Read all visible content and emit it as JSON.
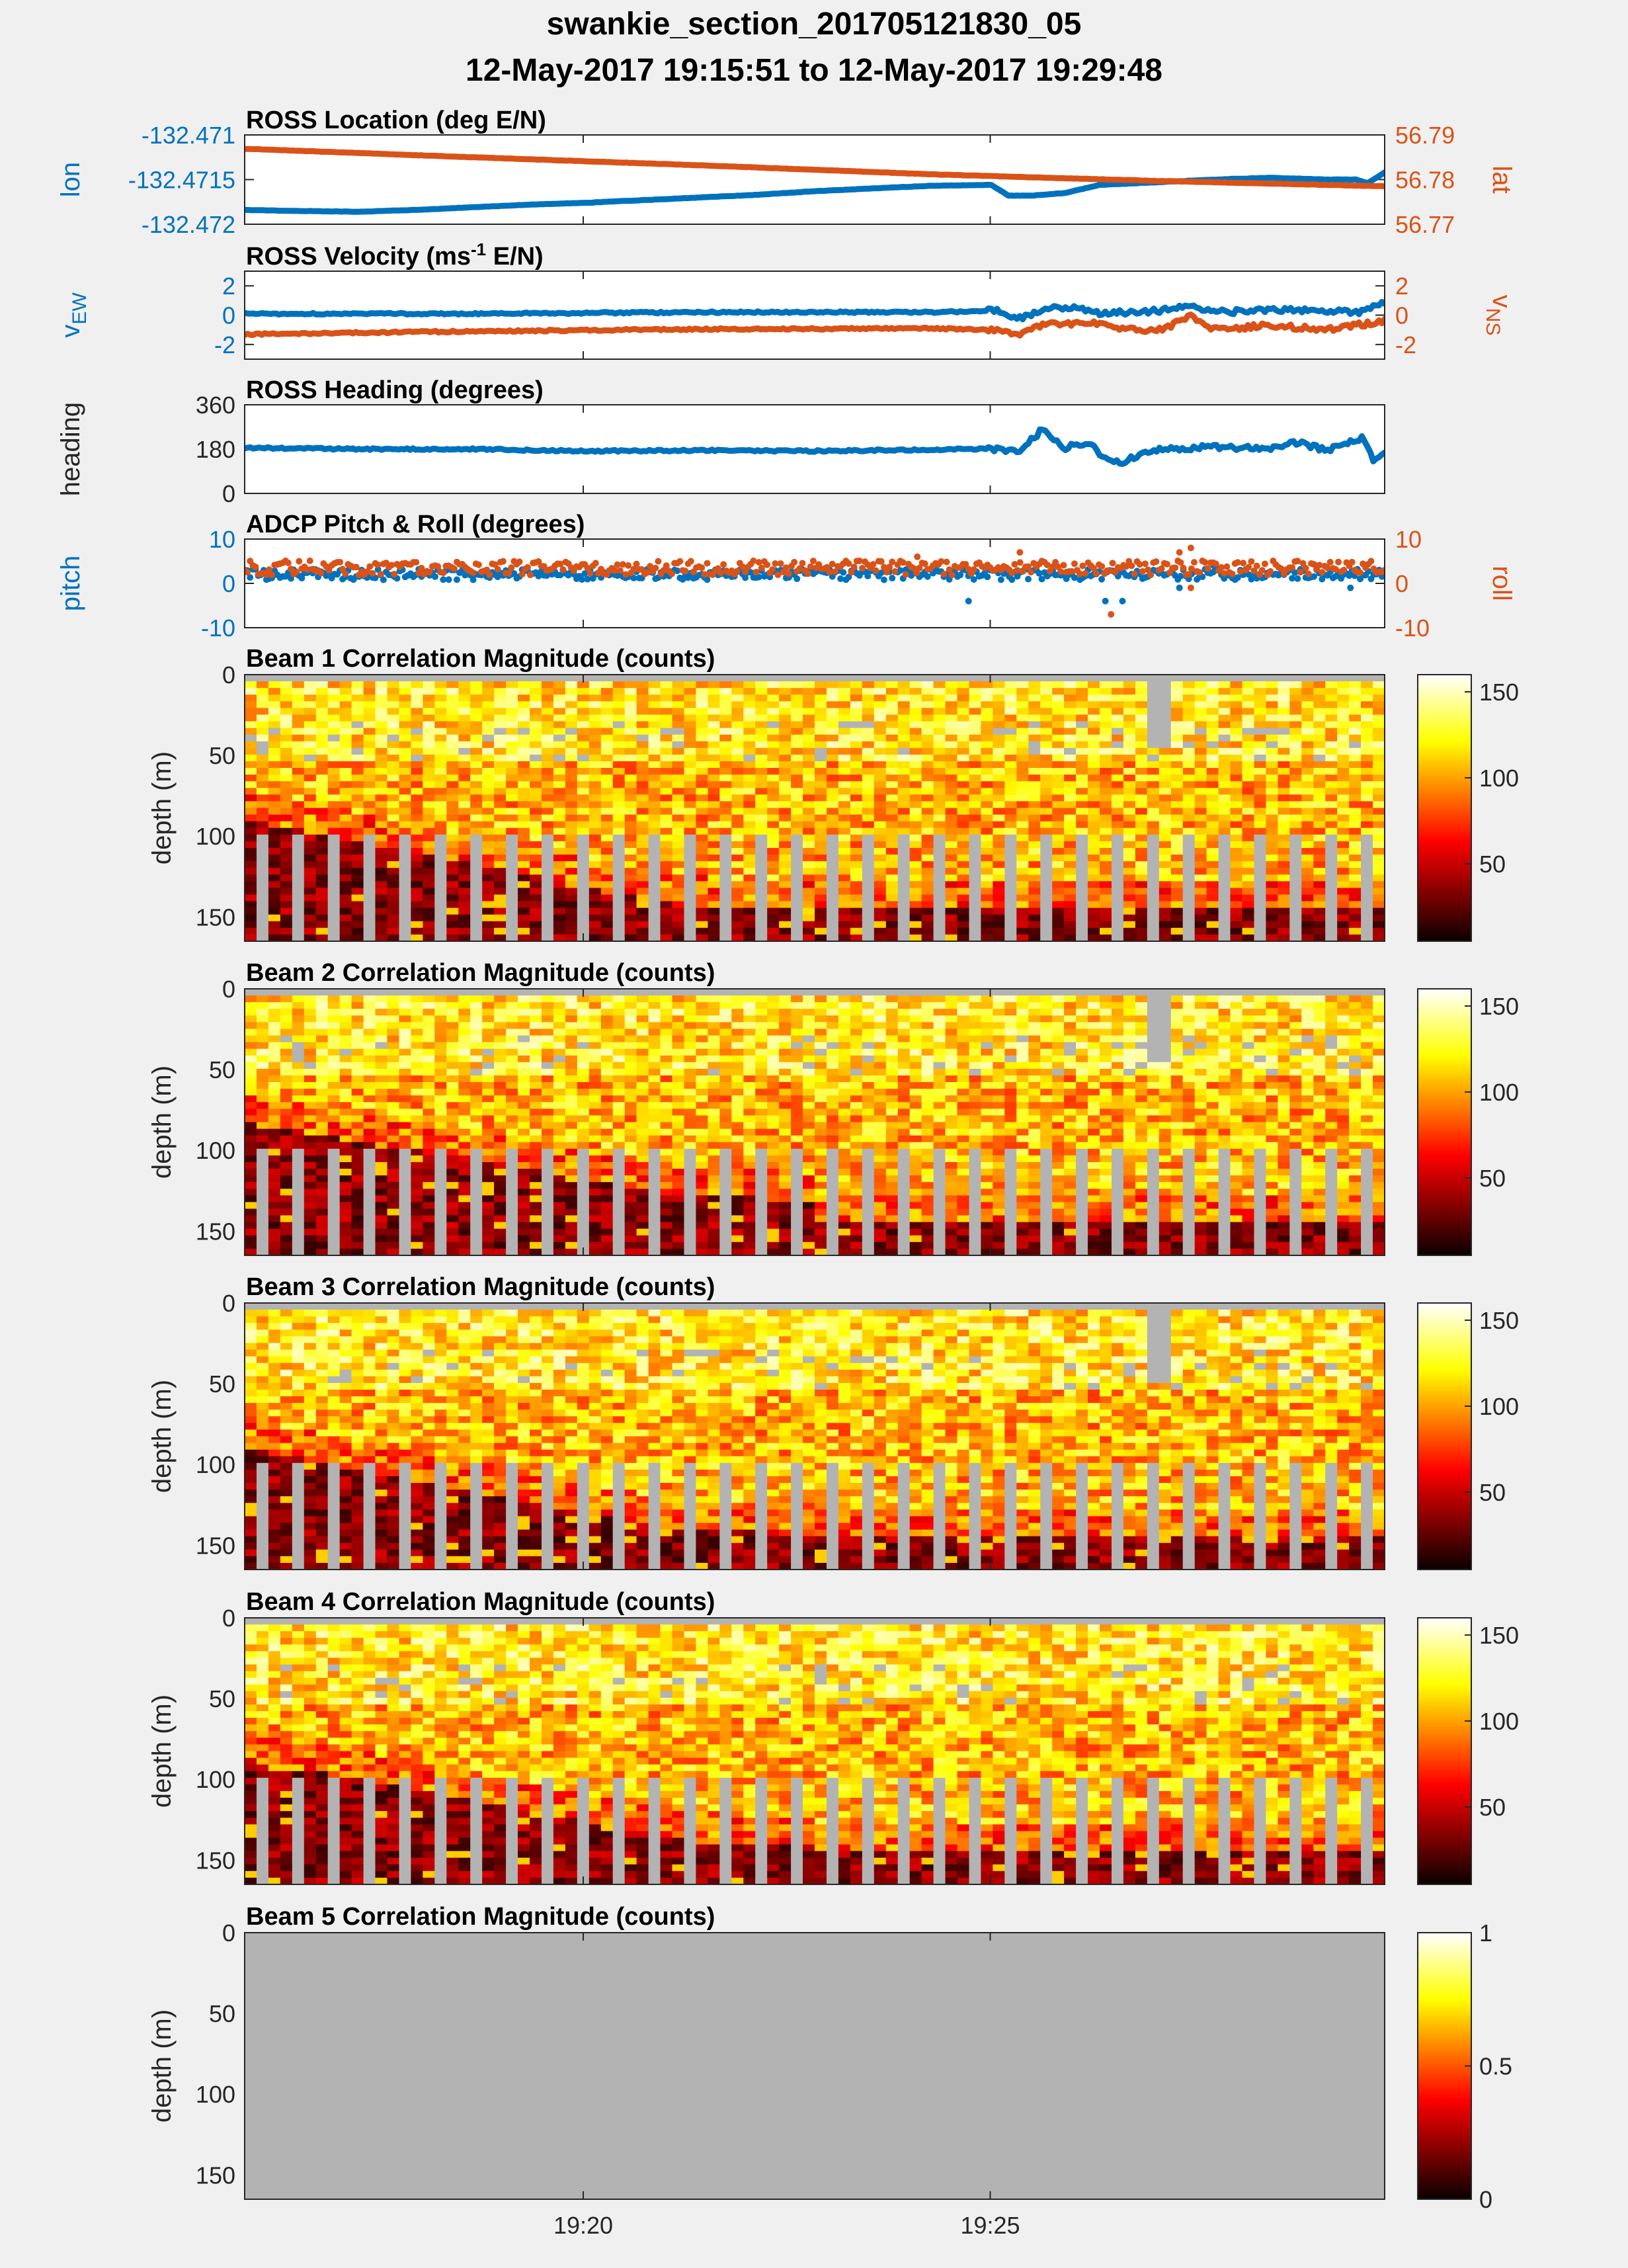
{
  "figure": {
    "title": "swankie_section_201705121830_05",
    "subtitle": "12-May-2017 19:15:51 to 12-May-2017 19:29:48",
    "colors": {
      "background": "#f0f0f0",
      "blue": "#0072bd",
      "orange": "#d95319",
      "nan_gray": "#b3b3b3"
    }
  },
  "chart_data": [
    {
      "type": "line",
      "title": "ROSS Location (deg E/N)",
      "x_ticks": [
        "19:20",
        "19:25"
      ],
      "left_axis": {
        "label": "lon",
        "ylim": [
          -132.472,
          -132.471
        ],
        "ticks": [
          -132.471,
          -132.4715,
          -132.472
        ],
        "tick_labels": [
          "-132.471",
          "-132.4715",
          "-132.472"
        ],
        "color": "#0072bd"
      },
      "right_axis": {
        "label": "lat",
        "ylim": [
          56.77,
          56.79
        ],
        "ticks": [
          56.79,
          56.78,
          56.77
        ],
        "tick_labels": [
          "56.79",
          "56.78",
          "56.77"
        ],
        "color": "#d95319"
      },
      "series": [
        {
          "axis": "left",
          "color": "#0072bd",
          "points": [
            [
              0,
              -132.47184
            ],
            [
              0.04,
              -132.47185
            ],
            [
              0.1,
              -132.47186
            ],
            [
              0.15,
              -132.47184
            ],
            [
              0.2,
              -132.47181
            ],
            [
              0.25,
              -132.47178
            ],
            [
              0.3,
              -132.47176
            ],
            [
              0.35,
              -132.47173
            ],
            [
              0.4,
              -132.4717
            ],
            [
              0.45,
              -132.47167
            ],
            [
              0.5,
              -132.47163
            ],
            [
              0.55,
              -132.4716
            ],
            [
              0.6,
              -132.47157
            ],
            [
              0.655,
              -132.47156
            ],
            [
              0.67,
              -132.47168
            ],
            [
              0.69,
              -132.47168
            ],
            [
              0.72,
              -132.47165
            ],
            [
              0.75,
              -132.47156
            ],
            [
              0.8,
              -132.47153
            ],
            [
              0.85,
              -132.4715
            ],
            [
              0.9,
              -132.47148
            ],
            [
              0.95,
              -132.4715
            ],
            [
              0.975,
              -132.4715
            ],
            [
              0.985,
              -132.47154
            ],
            [
              1.0,
              -132.47142
            ]
          ]
        },
        {
          "axis": "right",
          "color": "#d95319",
          "points": [
            [
              0,
              56.7869
            ],
            [
              0.2,
              56.785
            ],
            [
              0.4,
              56.7832
            ],
            [
              0.6,
              56.7812
            ],
            [
              0.8,
              56.7797
            ],
            [
              0.9,
              56.7791
            ],
            [
              1.0,
              56.7785
            ]
          ]
        }
      ]
    },
    {
      "type": "line",
      "title": "ROSS Velocity (ms",
      "title_superscript": "-1",
      "title_suffix": " E/N)",
      "x_ticks": [
        "19:20",
        "19:25"
      ],
      "left_axis": {
        "label": "v",
        "label_sub": "EW",
        "ylim": [
          -3,
          3
        ],
        "ticks": [
          2,
          0,
          -2
        ],
        "tick_labels": [
          "2",
          "0",
          "-2"
        ],
        "color": "#0072bd"
      },
      "right_axis": {
        "label": "v",
        "label_sub": "NS",
        "ylim": [
          -3,
          3
        ],
        "ticks": [
          2,
          0,
          -2
        ],
        "tick_labels": [
          "2",
          "0",
          "-2"
        ],
        "color": "#d95319"
      },
      "series": [
        {
          "axis": "left",
          "color": "#0072bd",
          "points": [
            [
              0,
              0.1
            ],
            [
              0.2,
              0.1
            ],
            [
              0.4,
              0.2
            ],
            [
              0.6,
              0.2
            ],
            [
              0.66,
              0.3
            ],
            [
              0.68,
              -0.2
            ],
            [
              0.7,
              0.4
            ],
            [
              0.73,
              0.6
            ],
            [
              0.75,
              0.1
            ],
            [
              0.8,
              0.3
            ],
            [
              0.83,
              0.6
            ],
            [
              0.86,
              0.2
            ],
            [
              0.9,
              0.4
            ],
            [
              0.95,
              0.3
            ],
            [
              0.98,
              0.2
            ],
            [
              1.0,
              0.9
            ]
          ]
        },
        {
          "axis": "right",
          "color": "#d95319",
          "points": [
            [
              0,
              -1.3
            ],
            [
              0.2,
              -1.1
            ],
            [
              0.4,
              -0.95
            ],
            [
              0.6,
              -0.9
            ],
            [
              0.65,
              -1.0
            ],
            [
              0.68,
              -1.3
            ],
            [
              0.7,
              -0.6
            ],
            [
              0.75,
              -0.6
            ],
            [
              0.78,
              -1.0
            ],
            [
              0.8,
              -1.1
            ],
            [
              0.83,
              -0.1
            ],
            [
              0.85,
              -1.0
            ],
            [
              0.9,
              -0.7
            ],
            [
              0.95,
              -1.0
            ],
            [
              1.0,
              -0.4
            ]
          ]
        }
      ]
    },
    {
      "type": "line",
      "title": "ROSS Heading (degrees)",
      "x_ticks": [
        "19:20",
        "19:25"
      ],
      "left_axis": {
        "label": "heading",
        "ylim": [
          0,
          360
        ],
        "ticks": [
          360,
          180,
          0
        ],
        "tick_labels": [
          "360",
          "180",
          "0"
        ],
        "color": "#262626"
      },
      "series": [
        {
          "axis": "left",
          "color": "#0072bd",
          "points": [
            [
              0,
              185
            ],
            [
              0.1,
              180
            ],
            [
              0.2,
              180
            ],
            [
              0.3,
              172
            ],
            [
              0.4,
              175
            ],
            [
              0.5,
              172
            ],
            [
              0.6,
              178
            ],
            [
              0.65,
              180
            ],
            [
              0.68,
              175
            ],
            [
              0.7,
              260
            ],
            [
              0.72,
              185
            ],
            [
              0.74,
              210
            ],
            [
              0.755,
              140
            ],
            [
              0.77,
              130
            ],
            [
              0.8,
              175
            ],
            [
              0.85,
              190
            ],
            [
              0.9,
              180
            ],
            [
              0.92,
              210
            ],
            [
              0.95,
              175
            ],
            [
              0.98,
              225
            ],
            [
              0.99,
              140
            ],
            [
              1.0,
              170
            ]
          ]
        }
      ]
    },
    {
      "type": "scatter",
      "title": "ADCP Pitch & Roll (degrees)",
      "x_ticks": [
        "19:20",
        "19:25"
      ],
      "left_axis": {
        "label": "pitch",
        "ylim": [
          -10,
          10
        ],
        "ticks": [
          10,
          0,
          -10
        ],
        "tick_labels": [
          "10",
          "0",
          "-10"
        ],
        "color": "#0072bd"
      },
      "right_axis": {
        "label": "roll",
        "ylim": [
          -10,
          10
        ],
        "ticks": [
          10,
          0,
          -10
        ],
        "tick_labels": [
          "10",
          "0",
          "-10"
        ],
        "color": "#d95319"
      },
      "series": [
        {
          "axis": "left",
          "color": "#0072bd",
          "baseline": 2,
          "outliers": [
            [
              0.635,
              -4
            ],
            [
              0.755,
              -4
            ],
            [
              0.77,
              -4
            ],
            [
              0.82,
              -1
            ],
            [
              0.85,
              4
            ],
            [
              0.97,
              -1
            ]
          ]
        },
        {
          "axis": "right",
          "color": "#d95319",
          "baseline": 3.5,
          "outliers": [
            [
              0.59,
              6
            ],
            [
              0.68,
              7
            ],
            [
              0.76,
              -7
            ],
            [
              0.82,
              7
            ],
            [
              0.83,
              8
            ],
            [
              0.83,
              -1
            ]
          ]
        }
      ]
    },
    {
      "type": "heatmap",
      "title": "Beam 1 Correlation Magnitude (counts)",
      "ylabel": "depth (m)",
      "ylim": [
        0,
        165
      ],
      "y_ticks": [
        0,
        50,
        100,
        150
      ],
      "x_ticks": [
        "19:20",
        "19:25"
      ],
      "colorbar": {
        "ticks": [
          50,
          100,
          150
        ],
        "tick_labels": [
          "50",
          "100",
          "150"
        ],
        "range": [
          5,
          160
        ]
      },
      "bottom_depth": {
        "start": 82,
        "end": 135
      },
      "gray_gap": [
        0.79,
        0.815,
        45
      ]
    },
    {
      "type": "heatmap",
      "title": "Beam 2 Correlation Magnitude (counts)",
      "ylabel": "depth (m)",
      "ylim": [
        0,
        165
      ],
      "y_ticks": [
        0,
        50,
        100,
        150
      ],
      "x_ticks": [
        "19:20",
        "19:25"
      ],
      "colorbar": {
        "ticks": [
          50,
          100,
          150
        ],
        "tick_labels": [
          "50",
          "100",
          "150"
        ],
        "range": [
          5,
          160
        ]
      },
      "bottom_depth": {
        "start": 75,
        "end": 120
      },
      "gray_gap": [
        0.79,
        0.81,
        45
      ]
    },
    {
      "type": "heatmap",
      "title": "Beam 3 Correlation Magnitude (counts)",
      "ylabel": "depth (m)",
      "ylim": [
        0,
        165
      ],
      "y_ticks": [
        0,
        50,
        100,
        150
      ],
      "x_ticks": [
        "19:20",
        "19:25"
      ],
      "colorbar": {
        "ticks": [
          50,
          100,
          150
        ],
        "tick_labels": [
          "50",
          "100",
          "150"
        ],
        "range": [
          5,
          160
        ]
      },
      "bottom_depth": {
        "start": 82,
        "end": 132
      },
      "gray_gap": [
        0.79,
        0.815,
        50
      ]
    },
    {
      "type": "heatmap",
      "title": "Beam 4 Correlation Magnitude (counts)",
      "ylabel": "depth (m)",
      "ylim": [
        0,
        165
      ],
      "y_ticks": [
        0,
        50,
        100,
        150
      ],
      "x_ticks": [
        "19:20",
        "19:25"
      ],
      "colorbar": {
        "ticks": [
          50,
          100,
          150
        ],
        "tick_labels": [
          "50",
          "100",
          "150"
        ],
        "range": [
          5,
          160
        ]
      },
      "bottom_depth": {
        "start": 80,
        "end": 130
      },
      "gray_gap": null
    },
    {
      "type": "heatmap",
      "title": "Beam 5 Correlation Magnitude (counts)",
      "ylabel": "depth (m)",
      "ylim": [
        0,
        165
      ],
      "y_ticks": [
        0,
        50,
        100,
        150
      ],
      "x_ticks": [
        "19:20",
        "19:25"
      ],
      "colorbar": {
        "ticks": [
          0,
          0.5,
          1
        ],
        "tick_labels": [
          "0",
          "0.5",
          "1"
        ],
        "range": [
          0,
          1
        ]
      },
      "all_nan": true
    }
  ]
}
